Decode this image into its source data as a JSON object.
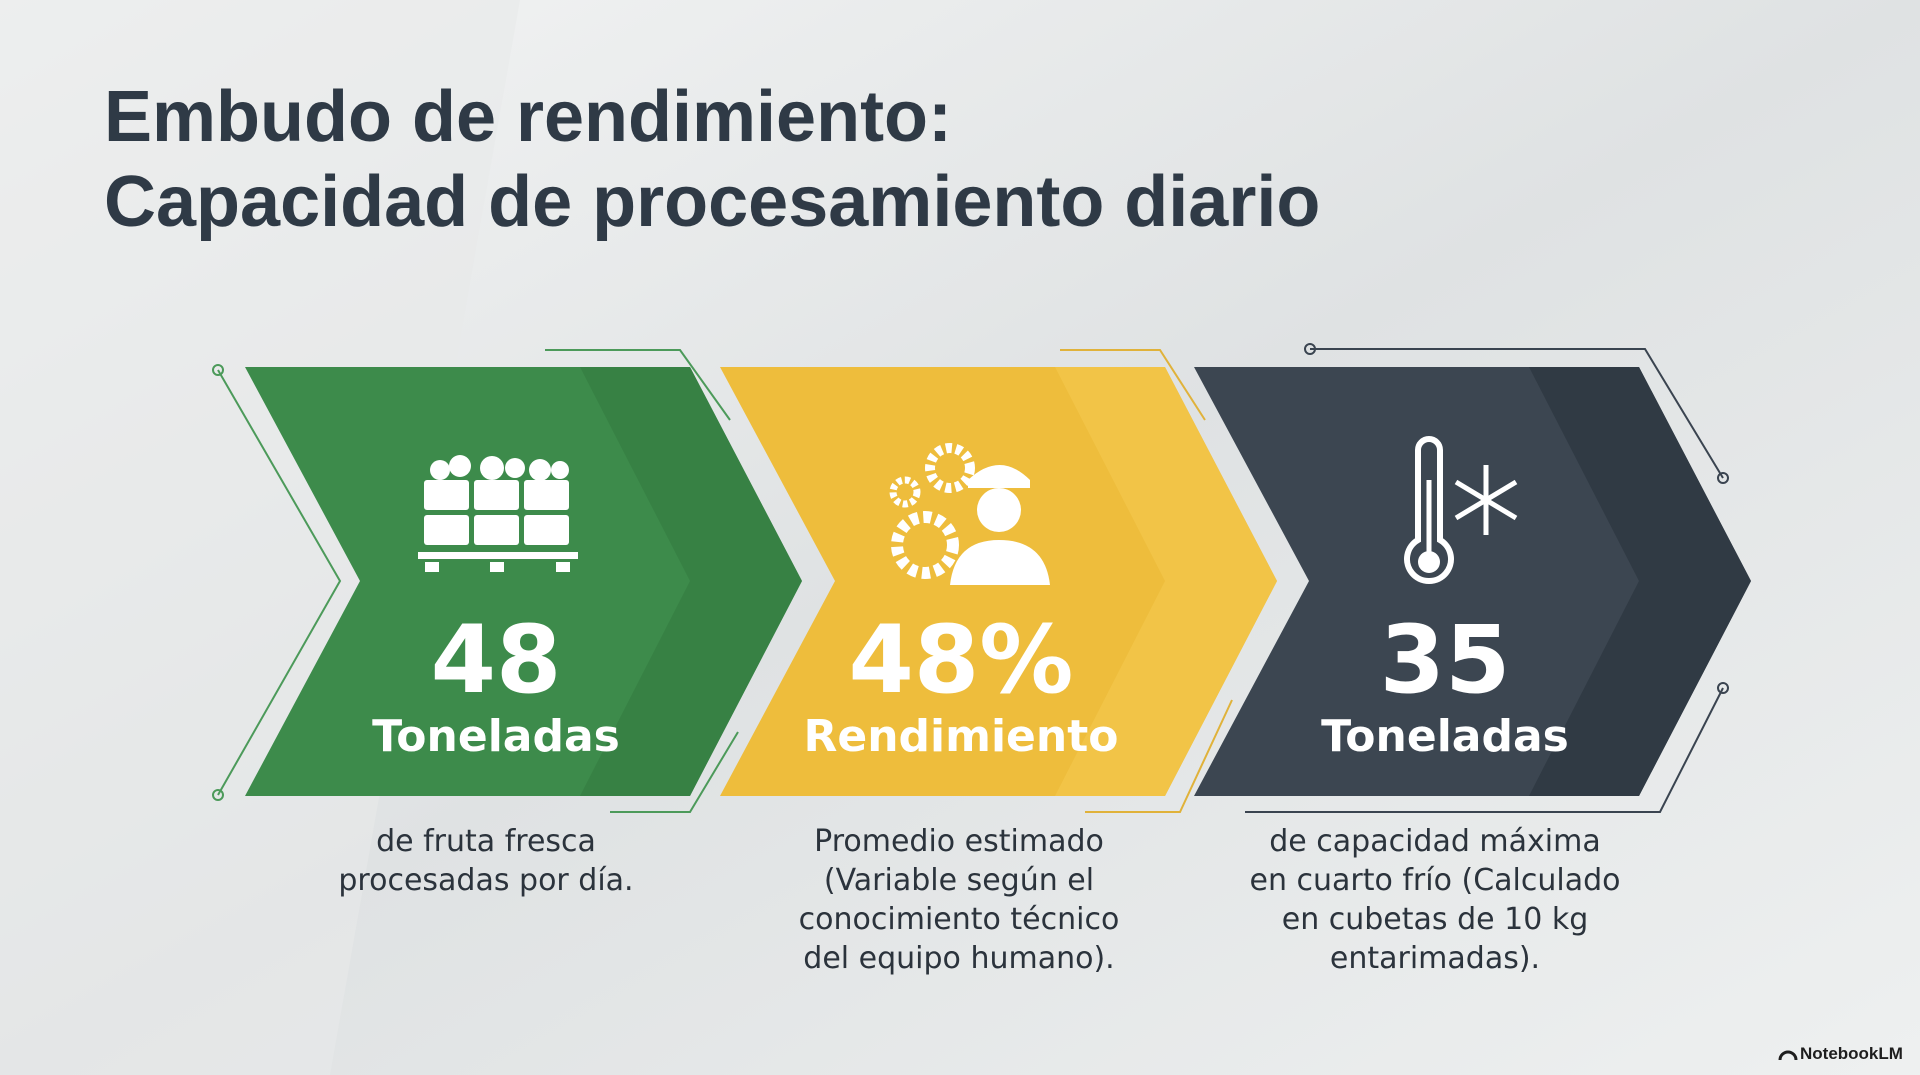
{
  "header": {
    "title_lines": [
      "Embudo de rendimiento:",
      "Capacidad de procesamiento diario"
    ]
  },
  "steps": [
    {
      "number": "48",
      "unit": "Toneladas",
      "description_lines": [
        "de fruta fresca",
        "procesadas por día."
      ]
    },
    {
      "number": "48%",
      "unit": "Rendimiento",
      "description_lines": [
        "Promedio estimado",
        "(Variable según el",
        "conocimiento técnico",
        "del equipo humano)."
      ]
    },
    {
      "number": "35",
      "unit": "Toneladas",
      "description_lines": [
        "de capacidad máxima",
        "en cuarto frío (Calculado",
        "en cubetas de 10 kg",
        "entarimadas)."
      ]
    }
  ],
  "brand": "NotebookLM"
}
